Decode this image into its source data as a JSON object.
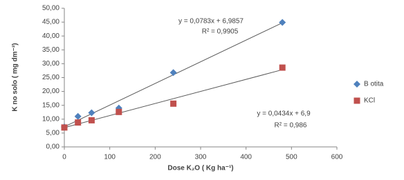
{
  "chart_data": {
    "type": "scatter",
    "x_label": "Dose K₂O ( Kg ha⁻¹)",
    "y_label": "K no solo ( mg dm⁻³)",
    "x": [
      0,
      30,
      60,
      120,
      240,
      480
    ],
    "series": [
      {
        "name": "B otita",
        "color": "#4f81bd",
        "marker": "diamond",
        "trendline": "linear",
        "values": [
          7.2,
          11.0,
          12.3,
          14.0,
          26.8,
          44.9
        ]
      },
      {
        "name": "KCl",
        "color": "#c0504d",
        "marker": "square",
        "trendline": "linear",
        "values": [
          7.0,
          8.8,
          9.6,
          12.6,
          15.6,
          28.6
        ]
      }
    ],
    "annotations": [
      "y = 0,0783x + 6,9857",
      "R² = 0,9905",
      "y = 0,0434x + 6,9",
      "R² = 0,986"
    ],
    "xlim": [
      0,
      600
    ],
    "xticks": [
      0,
      100,
      200,
      300,
      400,
      500,
      600
    ],
    "ylim": [
      0,
      50
    ],
    "yticks": [
      {
        "value": 0,
        "label": "0,00"
      },
      {
        "value": 5,
        "label": "5,00"
      },
      {
        "value": 10,
        "label": "10,00"
      },
      {
        "value": 15,
        "label": "15,00"
      },
      {
        "value": 20,
        "label": "20,00"
      },
      {
        "value": 25,
        "label": "25,00"
      },
      {
        "value": 30,
        "label": "30,00"
      },
      {
        "value": 35,
        "label": "35,00"
      },
      {
        "value": 40,
        "label": "40,00"
      },
      {
        "value": 45,
        "label": "45,00"
      },
      {
        "value": 50,
        "label": "50,00"
      }
    ],
    "legend": "right"
  }
}
